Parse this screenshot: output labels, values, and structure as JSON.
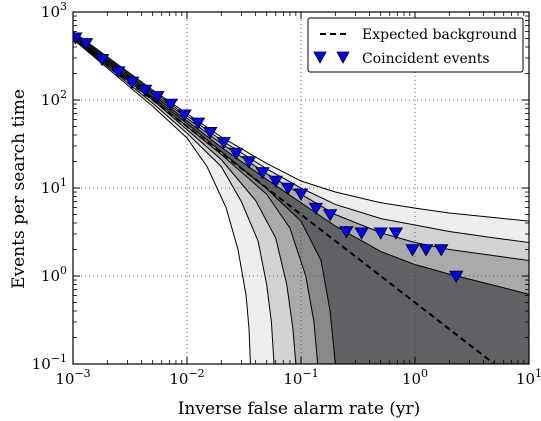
{
  "chart_data": {
    "type": "line",
    "xlabel": "Inverse false alarm rate (yr)",
    "ylabel": "Events per search time",
    "xscale": "log",
    "yscale": "log",
    "xlim": [
      0.001,
      10
    ],
    "ylim": [
      0.1,
      1000
    ],
    "grid": "dotted",
    "legend_position": "top-right",
    "x_ticks": [
      {
        "value": 0.001,
        "base": "10",
        "exp": "−3"
      },
      {
        "value": 0.01,
        "base": "10",
        "exp": "−2"
      },
      {
        "value": 0.1,
        "base": "10",
        "exp": "−1"
      },
      {
        "value": 1,
        "base": "10",
        "exp": "0"
      },
      {
        "value": 10,
        "base": "10",
        "exp": "1"
      }
    ],
    "y_ticks": [
      {
        "value": 0.1,
        "base": "10",
        "exp": "−1"
      },
      {
        "value": 1,
        "base": "10",
        "exp": "0"
      },
      {
        "value": 10,
        "base": "10",
        "exp": "1"
      },
      {
        "value": 100,
        "base": "10",
        "exp": "2"
      },
      {
        "value": 1000,
        "base": "10",
        "exp": "3"
      }
    ],
    "series": [
      {
        "name": "Expected background",
        "style": "dashed",
        "color": "#000000",
        "x": [
          0.001,
          0.01,
          0.1,
          1,
          5.5
        ],
        "y": [
          500,
          50,
          5,
          0.5,
          0.09
        ]
      },
      {
        "name": "Coincident events",
        "style": "marker",
        "marker": "triangle-down",
        "color": "#0000ff",
        "x": [
          0.00105,
          0.0013,
          0.0018,
          0.0025,
          0.0033,
          0.0043,
          0.0055,
          0.0072,
          0.0095,
          0.0125,
          0.016,
          0.021,
          0.027,
          0.035,
          0.046,
          0.06,
          0.077,
          0.1,
          0.135,
          0.18,
          0.25,
          0.34,
          0.5,
          0.68,
          0.95,
          1.25,
          1.7,
          2.3
        ],
        "y": [
          510,
          440,
          290,
          210,
          160,
          130,
          110,
          90,
          68,
          55,
          43,
          33,
          25,
          20,
          15,
          12,
          10,
          8.6,
          5.9,
          5.0,
          3.2,
          3.1,
          3.1,
          3.1,
          2.0,
          2.0,
          2.0,
          1.0
        ]
      }
    ],
    "background_bands": {
      "colors": [
        "#eeeeee",
        "#d3d3d3",
        "#aaaaaa",
        "#888888",
        "#5f6164"
      ],
      "boundaries": [
        {
          "x": [
            0.001,
            0.002,
            0.005,
            0.01,
            0.02,
            0.05,
            0.1,
            0.2,
            0.5,
            1,
            2,
            5,
            10
          ],
          "y": [
            600,
            310,
            130,
            70,
            38,
            19,
            12,
            9,
            6.8,
            5.9,
            5.2,
            4.6,
            4.2
          ]
        },
        {
          "x": [
            0.001,
            0.002,
            0.005,
            0.01,
            0.02,
            0.05,
            0.1,
            0.2,
            0.5,
            1,
            2,
            5,
            10
          ],
          "y": [
            580,
            300,
            125,
            66,
            35,
            16.5,
            10,
            6.5,
            4.5,
            3.8,
            3.2,
            2.7,
            2.4
          ]
        },
        {
          "x": [
            0.001,
            0.002,
            0.005,
            0.01,
            0.02,
            0.05,
            0.1,
            0.2,
            0.5,
            1,
            2,
            5,
            10
          ],
          "y": [
            560,
            290,
            120,
            62,
            32,
            14.5,
            8.5,
            5.0,
            3.1,
            2.4,
            2.0,
            1.7,
            1.5
          ]
        },
        {
          "x": [
            0.001,
            0.002,
            0.005,
            0.01,
            0.02,
            0.05,
            0.1,
            0.2,
            0.5,
            1,
            2,
            5,
            10
          ],
          "y": [
            540,
            280,
            115,
            58,
            29,
            12.5,
            6.8,
            3.7,
            1.9,
            1.35,
            1.05,
            0.78,
            0.62
          ]
        },
        {
          "x": [
            0.001,
            0.002,
            0.005,
            0.01,
            0.02,
            0.05,
            0.1,
            0.15,
            0.18,
            0.2
          ],
          "y": [
            530,
            270,
            108,
            54,
            26,
            9.8,
            4.2,
            1.5,
            0.4,
            0.1
          ]
        },
        {
          "x": [
            0.001,
            0.002,
            0.005,
            0.01,
            0.02,
            0.05,
            0.08,
            0.11,
            0.13,
            0.14
          ],
          "y": [
            520,
            260,
            104,
            50,
            24,
            8.5,
            3.5,
            1.0,
            0.3,
            0.1
          ]
        },
        {
          "x": [
            0.001,
            0.002,
            0.005,
            0.01,
            0.02,
            0.04,
            0.06,
            0.075,
            0.085,
            0.09
          ],
          "y": [
            510,
            250,
            100,
            46,
            21,
            7.2,
            2.7,
            0.8,
            0.25,
            0.1
          ]
        },
        {
          "x": [
            0.001,
            0.002,
            0.005,
            0.01,
            0.02,
            0.03,
            0.042,
            0.05,
            0.055,
            0.058
          ],
          "y": [
            500,
            240,
            92,
            42,
            17.5,
            7.0,
            2.5,
            0.8,
            0.3,
            0.1
          ]
        },
        {
          "x": [
            0.001,
            0.002,
            0.005,
            0.01,
            0.015,
            0.022,
            0.028,
            0.033,
            0.035,
            0.036
          ],
          "y": [
            490,
            230,
            85,
            37,
            17.5,
            6.0,
            2.0,
            0.6,
            0.25,
            0.1
          ]
        }
      ]
    }
  }
}
